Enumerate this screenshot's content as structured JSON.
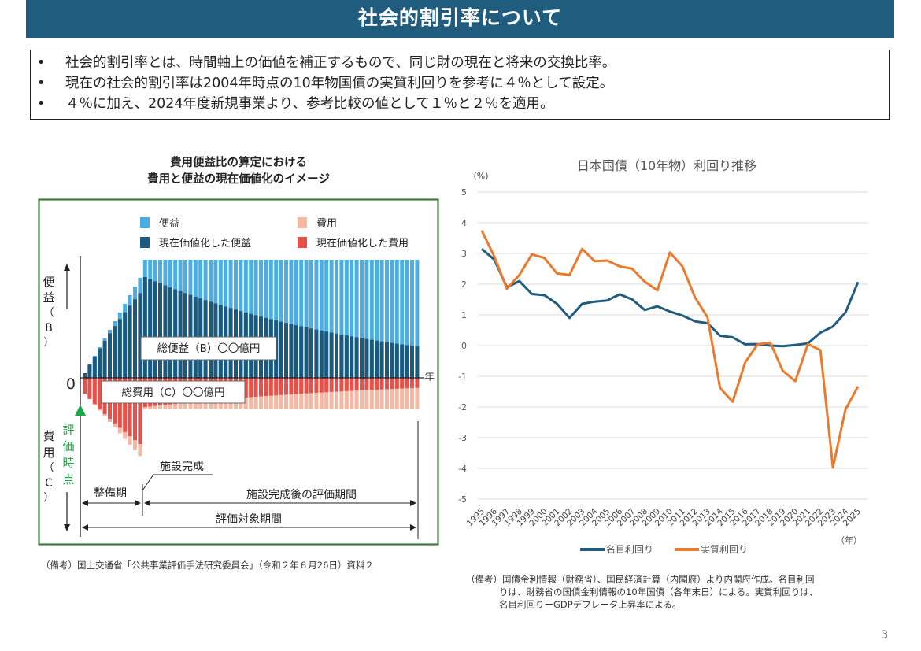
{
  "header": {
    "title": "社会的割引率について"
  },
  "bullets": [
    "社会的割引率とは、時間軸上の価値を補正するもので、同じ財の現在と将来の交換比率。",
    "現在の社会的割引率は2004年時点の10年物国債の実質利回りを参考に４％として設定。",
    "４％に加え、2024年度新規事業より、参考比較の値として１％と２％を適用。"
  ],
  "left_figure": {
    "title_line1": "費用便益比の算定における",
    "title_line2": "費用と便益の現在価値化のイメージ",
    "legend": {
      "benefit": "便益",
      "pv_benefit": "現在価値化した便益",
      "cost": "費用",
      "pv_cost": "現在価値化した費用"
    },
    "axis": {
      "benefit_label": [
        "便",
        "益",
        "（",
        "B",
        "）"
      ],
      "cost_label": [
        "費",
        "用",
        "（",
        "C",
        "）"
      ],
      "zero": "0",
      "year": "年",
      "eval_point": [
        "評",
        "価",
        "時",
        "点"
      ]
    },
    "total_benefit_box": "総便益（B）〇〇億円",
    "total_cost_box": "総費用（C）〇〇億円",
    "facility_complete": "施設完成",
    "construction_period": "整備期",
    "post_eval_period": "施設完成後の評価期間",
    "eval_target_period": "評価対象期間",
    "colors": {
      "benefit": "#4aaee3",
      "pv_benefit": "#1b5a7e",
      "cost": "#f4b8a4",
      "pv_cost": "#e8504a",
      "frame": "#3e7d3a",
      "eval": "#1ea64a"
    }
  },
  "chart_data": {
    "type": "line",
    "title": "日本国債（10年物）利回り推移",
    "ylabel": "(%)",
    "xlabel": "（年）",
    "ylim": [
      -5,
      5
    ],
    "yticks": [
      5,
      4,
      3,
      2,
      1,
      0,
      -1,
      -2,
      -3,
      -4,
      -5
    ],
    "grid": true,
    "legend_position": "bottom",
    "x": [
      "1995",
      "1996",
      "1997",
      "1998",
      "1999",
      "2000",
      "2001",
      "2002",
      "2003",
      "2004",
      "2005",
      "2006",
      "2007",
      "2008",
      "2009",
      "2010",
      "2011",
      "2012",
      "2013",
      "2014",
      "2015",
      "2016",
      "2017",
      "2018",
      "2019",
      "2020",
      "2021",
      "2022",
      "2023",
      "2024",
      "2025"
    ],
    "series": [
      {
        "name": "名目利回り",
        "color": "#1f5c7d",
        "values": [
          3.15,
          2.8,
          1.9,
          2.1,
          1.68,
          1.64,
          1.36,
          0.9,
          1.36,
          1.43,
          1.47,
          1.67,
          1.5,
          1.16,
          1.28,
          1.11,
          0.98,
          0.79,
          0.73,
          0.32,
          0.27,
          0.04,
          0.05,
          0.0,
          -0.02,
          0.02,
          0.07,
          0.42,
          0.62,
          1.08,
          2.07
        ]
      },
      {
        "name": "実質利回り",
        "color": "#ec7a2c",
        "values": [
          3.75,
          2.9,
          1.85,
          2.3,
          2.97,
          2.85,
          2.35,
          2.3,
          3.15,
          2.75,
          2.77,
          2.58,
          2.5,
          2.08,
          1.8,
          3.03,
          2.58,
          1.57,
          0.92,
          -1.38,
          -1.83,
          -0.55,
          0.04,
          0.1,
          -0.82,
          -1.16,
          0.05,
          -0.15,
          -3.97,
          -2.08,
          -1.33
        ]
      }
    ]
  },
  "notes": {
    "left": "（備考）国土交通省「公共事業評価手法研究委員会」（令和２年６月26日）資料２",
    "right_line1": "（備考）国債金利情報（財務省）、国民経済計算（内閣府）より内閣府作成。名目利回",
    "right_line2": "りは、財務省の国債金利情報の10年国債（各年末日）による。実質利回りは、",
    "right_line3": "名目利回りーGDPデフレータ上昇率による。"
  },
  "page_number": "3"
}
